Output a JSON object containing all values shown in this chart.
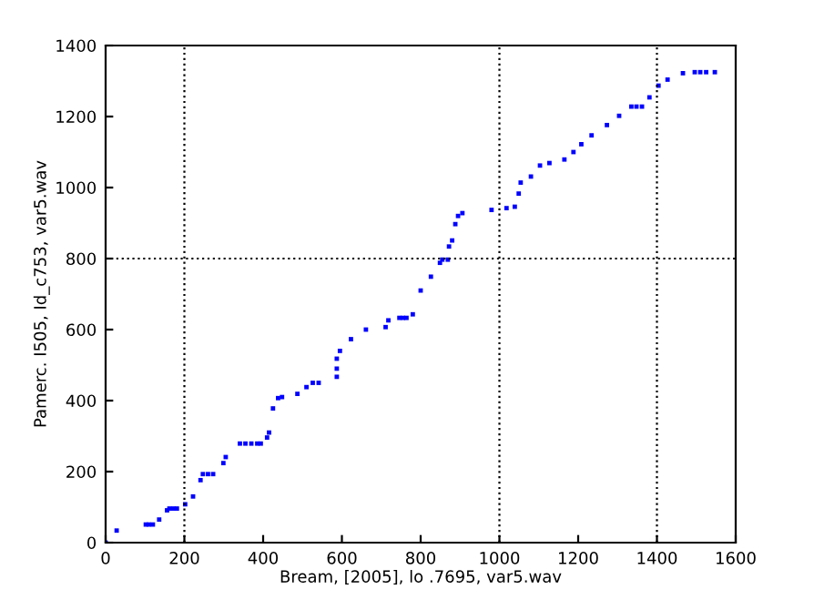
{
  "chart_data": {
    "type": "scatter",
    "xlabel": "Bream, [2005], lo .7695, var5.wav",
    "ylabel": "Pamerc. I505, Id_c753, var5.wav",
    "series": [
      {
        "color": "#0000ff",
        "x": [
          0,
          28,
          102,
          110,
          120,
          136,
          156,
          162,
          172,
          181,
          202,
          222,
          241,
          247,
          260,
          273,
          299,
          305,
          341,
          355,
          370,
          385,
          394,
          410,
          415,
          425,
          438,
          448,
          487,
          510,
          526,
          541,
          587,
          587,
          587,
          595,
          623,
          661,
          711,
          718,
          746,
          755,
          764,
          780,
          800,
          826,
          849,
          855,
          869,
          872,
          880,
          888,
          895,
          906,
          980,
          1018,
          1039,
          1049,
          1054,
          1080,
          1103,
          1127,
          1165,
          1188,
          1208,
          1234,
          1273,
          1304,
          1335,
          1348,
          1362,
          1381,
          1404,
          1427,
          1466,
          1496,
          1510,
          1525,
          1547
        ],
        "values": [
          0,
          34,
          51,
          51,
          51,
          65,
          91,
          96,
          96,
          96,
          108,
          130,
          176,
          193,
          193,
          193,
          224,
          241,
          279,
          279,
          279,
          279,
          279,
          296,
          310,
          378,
          407,
          410,
          419,
          438,
          450,
          450,
          467,
          490,
          518,
          540,
          573,
          600,
          607,
          626,
          633,
          633,
          633,
          643,
          710,
          749,
          788,
          797,
          797,
          834,
          851,
          897,
          920,
          928,
          937,
          942,
          946,
          983,
          1014,
          1031,
          1062,
          1069,
          1079,
          1100,
          1122,
          1147,
          1176,
          1202,
          1228,
          1228,
          1228,
          1254,
          1287,
          1304,
          1322,
          1325,
          1325,
          1325,
          1325
        ]
      }
    ],
    "marker": "square",
    "xlim": [
      0,
      1600
    ],
    "xticks": [
      0,
      200,
      400,
      600,
      800,
      1000,
      1200,
      1400,
      1600
    ],
    "ylim": [
      0,
      1400
    ],
    "yticks": [
      0,
      200,
      400,
      600,
      800,
      1000,
      1200,
      1400
    ],
    "ref_lines": [
      {
        "axis": "x",
        "value": 200,
        "color": "#000000",
        "line_style": "dotted"
      },
      {
        "axis": "x",
        "value": 1000,
        "color": "#000000",
        "line_style": "dotted"
      },
      {
        "axis": "x",
        "value": 1400,
        "color": "#000000",
        "line_style": "dotted"
      },
      {
        "axis": "y",
        "value": 800,
        "color": "#000000",
        "line_style": "dotted"
      }
    ],
    "grid": false,
    "legend": false
  }
}
